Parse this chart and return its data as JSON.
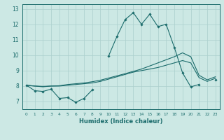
{
  "xlabel": "Humidex (Indice chaleur)",
  "bg_color": "#cce8e4",
  "grid_color": "#aacfcc",
  "line_color": "#1a6b6b",
  "x_values": [
    0,
    1,
    2,
    3,
    4,
    5,
    6,
    7,
    8,
    9,
    10,
    11,
    12,
    13,
    14,
    15,
    16,
    17,
    18,
    19,
    20,
    21,
    22,
    23
  ],
  "series1": [
    8.05,
    7.7,
    7.65,
    7.8,
    7.2,
    7.25,
    6.95,
    7.2,
    7.75,
    null,
    9.95,
    11.2,
    12.3,
    12.75,
    12.0,
    12.65,
    11.85,
    12.0,
    10.5,
    8.85,
    7.95,
    8.1,
    null,
    8.4
  ],
  "series2": [
    8.05,
    8.0,
    7.95,
    8.0,
    8.0,
    8.05,
    8.1,
    8.15,
    8.2,
    8.3,
    8.45,
    8.6,
    8.75,
    8.9,
    9.0,
    9.1,
    9.2,
    9.35,
    9.5,
    9.65,
    9.5,
    8.55,
    8.3,
    8.5
  ],
  "series3": [
    8.05,
    8.0,
    7.98,
    8.0,
    8.02,
    8.1,
    8.15,
    8.2,
    8.28,
    8.38,
    8.52,
    8.66,
    8.8,
    8.95,
    9.1,
    9.3,
    9.5,
    9.7,
    9.9,
    10.15,
    9.9,
    8.7,
    8.4,
    8.6
  ],
  "ylim": [
    6.5,
    13.3
  ],
  "yticks": [
    7,
    8,
    9,
    10,
    11,
    12,
    13
  ],
  "xticks": [
    0,
    1,
    2,
    3,
    4,
    5,
    6,
    7,
    8,
    9,
    10,
    11,
    12,
    13,
    14,
    15,
    16,
    17,
    18,
    19,
    20,
    21,
    22,
    23
  ]
}
